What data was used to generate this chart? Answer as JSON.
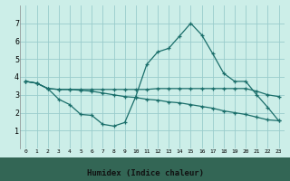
{
  "xlabel": "Humidex (Indice chaleur)",
  "background_color": "#cceee8",
  "grid_color": "#99cccc",
  "line_color": "#1a6e6a",
  "xlim": [
    -0.5,
    23.5
  ],
  "ylim": [
    0,
    8
  ],
  "xticks": [
    0,
    1,
    2,
    3,
    4,
    5,
    6,
    7,
    8,
    9,
    10,
    11,
    12,
    13,
    14,
    15,
    16,
    17,
    18,
    19,
    20,
    21,
    22,
    23
  ],
  "yticks": [
    1,
    2,
    3,
    4,
    5,
    6,
    7
  ],
  "lines": [
    {
      "x": [
        0,
        1,
        2,
        3,
        4,
        5,
        6,
        7,
        8,
        9,
        10,
        11,
        12,
        13,
        14,
        15,
        16,
        17,
        18,
        19,
        20,
        21,
        22,
        23
      ],
      "y": [
        3.75,
        3.65,
        3.35,
        3.3,
        3.3,
        3.3,
        3.3,
        3.3,
        3.3,
        3.3,
        3.3,
        3.3,
        3.35,
        3.35,
        3.35,
        3.35,
        3.35,
        3.35,
        3.35,
        3.35,
        3.35,
        3.2,
        3.0,
        2.9
      ]
    },
    {
      "x": [
        0,
        1,
        2,
        3,
        4,
        5,
        6,
        7,
        8,
        9,
        10,
        11,
        12,
        13,
        14,
        15,
        16,
        17,
        18,
        19,
        20,
        21,
        22,
        23
      ],
      "y": [
        3.75,
        3.65,
        3.35,
        3.3,
        3.3,
        3.25,
        3.2,
        3.1,
        3.0,
        2.9,
        2.85,
        2.75,
        2.7,
        2.6,
        2.55,
        2.45,
        2.35,
        2.25,
        2.1,
        2.0,
        1.9,
        1.75,
        1.6,
        1.55
      ]
    },
    {
      "x": [
        0,
        1,
        2,
        3,
        4,
        5,
        6,
        7,
        8,
        9,
        10,
        11,
        12,
        13,
        14,
        15,
        16,
        17,
        18,
        19,
        20,
        21,
        22,
        23
      ],
      "y": [
        3.75,
        3.65,
        3.35,
        2.75,
        2.45,
        1.9,
        1.85,
        1.35,
        1.25,
        1.45,
        2.9,
        4.7,
        5.4,
        5.6,
        6.3,
        7.0,
        6.35,
        5.3,
        4.2,
        3.75,
        3.75,
        3.0,
        2.3,
        1.55
      ]
    }
  ],
  "bottom_bar_color": "#336655",
  "bottom_bar_height": 0.13
}
